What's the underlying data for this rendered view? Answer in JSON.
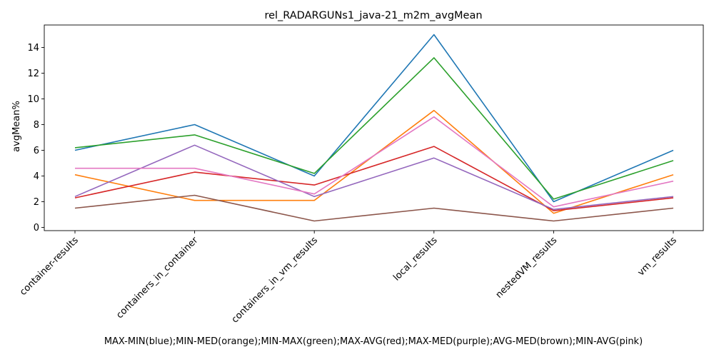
{
  "chart_data": {
    "type": "line",
    "title": "rel_RADARGUNs1_java-21_m2m_avgMean",
    "ylabel": "avgMean%",
    "xlabel": "MAX-MIN(blue);MIN-MED(orange);MIN-MAX(green);MAX-AVG(red);MAX-MED(purple);AVG-MED(brown);MIN-AVG(pink)",
    "categories": [
      "container-results",
      "containers_in_container",
      "containers_in_vm_results",
      "local_results",
      "nestedVM_results",
      "vm_results"
    ],
    "ylim": [
      -0.25,
      15.75
    ],
    "yticks": [
      0,
      2,
      4,
      6,
      8,
      10,
      12,
      14
    ],
    "grid": false,
    "series": [
      {
        "color": "#1f77b4",
        "values": [
          6.0,
          8.0,
          4.0,
          15.0,
          2.0,
          6.0
        ]
      },
      {
        "color": "#ff7f0e",
        "values": [
          4.1,
          2.1,
          2.1,
          9.1,
          1.1,
          4.1
        ]
      },
      {
        "color": "#2ca02c",
        "values": [
          6.2,
          7.2,
          4.2,
          13.2,
          2.2,
          5.2
        ]
      },
      {
        "color": "#d62728",
        "values": [
          2.3,
          4.3,
          3.3,
          6.3,
          1.3,
          2.3
        ]
      },
      {
        "color": "#9467bd",
        "values": [
          2.4,
          6.4,
          2.4,
          5.4,
          1.4,
          2.4
        ]
      },
      {
        "color": "#8c564b",
        "values": [
          1.5,
          2.5,
          0.5,
          1.5,
          0.5,
          1.5
        ]
      },
      {
        "color": "#e377c2",
        "values": [
          4.6,
          4.6,
          2.6,
          8.6,
          1.6,
          3.6
        ]
      }
    ]
  }
}
